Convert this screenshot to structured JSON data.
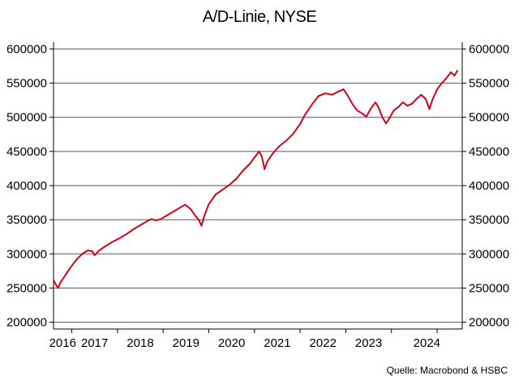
{
  "chart_data": {
    "type": "line",
    "title": "A/D-Linie, NYSE",
    "source": "Quelle: Macrobond & HSBC",
    "xlabel": "",
    "ylabel": "",
    "ylim": [
      190000,
      610000
    ],
    "xlim": [
      2015.6,
      2024.55
    ],
    "yticks": [
      200000,
      250000,
      300000,
      350000,
      400000,
      450000,
      500000,
      550000,
      600000
    ],
    "ytick_labels": [
      "200000",
      "250000",
      "300000",
      "350000",
      "400000",
      "450000",
      "500000",
      "550000",
      "600000"
    ],
    "year_labels": [
      "2016",
      "2017",
      "2018",
      "2019",
      "2020",
      "2021",
      "2022",
      "2023",
      "2024"
    ],
    "year_boundaries": [
      2016,
      2017,
      2018,
      2019,
      2020,
      2021,
      2022,
      2023,
      2024
    ],
    "grid": "horizontal",
    "series": [
      {
        "color": "#d9001b",
        "points": [
          [
            2015.6,
            262000
          ],
          [
            2015.65,
            255000
          ],
          [
            2015.7,
            250000
          ],
          [
            2015.75,
            258000
          ],
          [
            2015.85,
            268000
          ],
          [
            2015.95,
            278000
          ],
          [
            2016.05,
            287000
          ],
          [
            2016.15,
            295000
          ],
          [
            2016.25,
            301000
          ],
          [
            2016.35,
            305000
          ],
          [
            2016.45,
            304000
          ],
          [
            2016.5,
            298000
          ],
          [
            2016.6,
            305000
          ],
          [
            2016.75,
            312000
          ],
          [
            2016.9,
            318000
          ],
          [
            2017.05,
            323000
          ],
          [
            2017.2,
            329000
          ],
          [
            2017.35,
            336000
          ],
          [
            2017.5,
            342000
          ],
          [
            2017.65,
            348000
          ],
          [
            2017.75,
            351000
          ],
          [
            2017.85,
            349000
          ],
          [
            2017.95,
            351000
          ],
          [
            2018.05,
            355000
          ],
          [
            2018.2,
            361000
          ],
          [
            2018.35,
            367000
          ],
          [
            2018.48,
            372000
          ],
          [
            2018.6,
            366000
          ],
          [
            2018.7,
            356000
          ],
          [
            2018.78,
            350000
          ],
          [
            2018.84,
            341000
          ],
          [
            2018.9,
            355000
          ],
          [
            2019.0,
            373000
          ],
          [
            2019.15,
            387000
          ],
          [
            2019.3,
            394000
          ],
          [
            2019.45,
            401000
          ],
          [
            2019.6,
            410000
          ],
          [
            2019.75,
            422000
          ],
          [
            2019.9,
            432000
          ],
          [
            2020.0,
            441000
          ],
          [
            2020.1,
            450000
          ],
          [
            2020.16,
            443000
          ],
          [
            2020.22,
            424000
          ],
          [
            2020.28,
            435000
          ],
          [
            2020.4,
            447000
          ],
          [
            2020.55,
            458000
          ],
          [
            2020.7,
            466000
          ],
          [
            2020.85,
            476000
          ],
          [
            2021.0,
            490000
          ],
          [
            2021.1,
            503000
          ],
          [
            2021.25,
            518000
          ],
          [
            2021.4,
            531000
          ],
          [
            2021.55,
            535000
          ],
          [
            2021.7,
            533000
          ],
          [
            2021.85,
            538000
          ],
          [
            2021.95,
            541000
          ],
          [
            2022.05,
            531000
          ],
          [
            2022.15,
            519000
          ],
          [
            2022.25,
            510000
          ],
          [
            2022.35,
            506000
          ],
          [
            2022.45,
            501000
          ],
          [
            2022.55,
            513000
          ],
          [
            2022.65,
            522000
          ],
          [
            2022.72,
            514000
          ],
          [
            2022.8,
            500000
          ],
          [
            2022.88,
            491000
          ],
          [
            2022.95,
            498000
          ],
          [
            2023.05,
            510000
          ],
          [
            2023.15,
            515000
          ],
          [
            2023.25,
            522000
          ],
          [
            2023.35,
            517000
          ],
          [
            2023.45,
            520000
          ],
          [
            2023.55,
            527000
          ],
          [
            2023.65,
            533000
          ],
          [
            2023.75,
            527000
          ],
          [
            2023.83,
            512000
          ],
          [
            2023.9,
            526000
          ],
          [
            2024.0,
            541000
          ],
          [
            2024.1,
            550000
          ],
          [
            2024.2,
            557000
          ],
          [
            2024.3,
            566000
          ],
          [
            2024.38,
            561000
          ],
          [
            2024.45,
            569000
          ]
        ]
      }
    ]
  }
}
